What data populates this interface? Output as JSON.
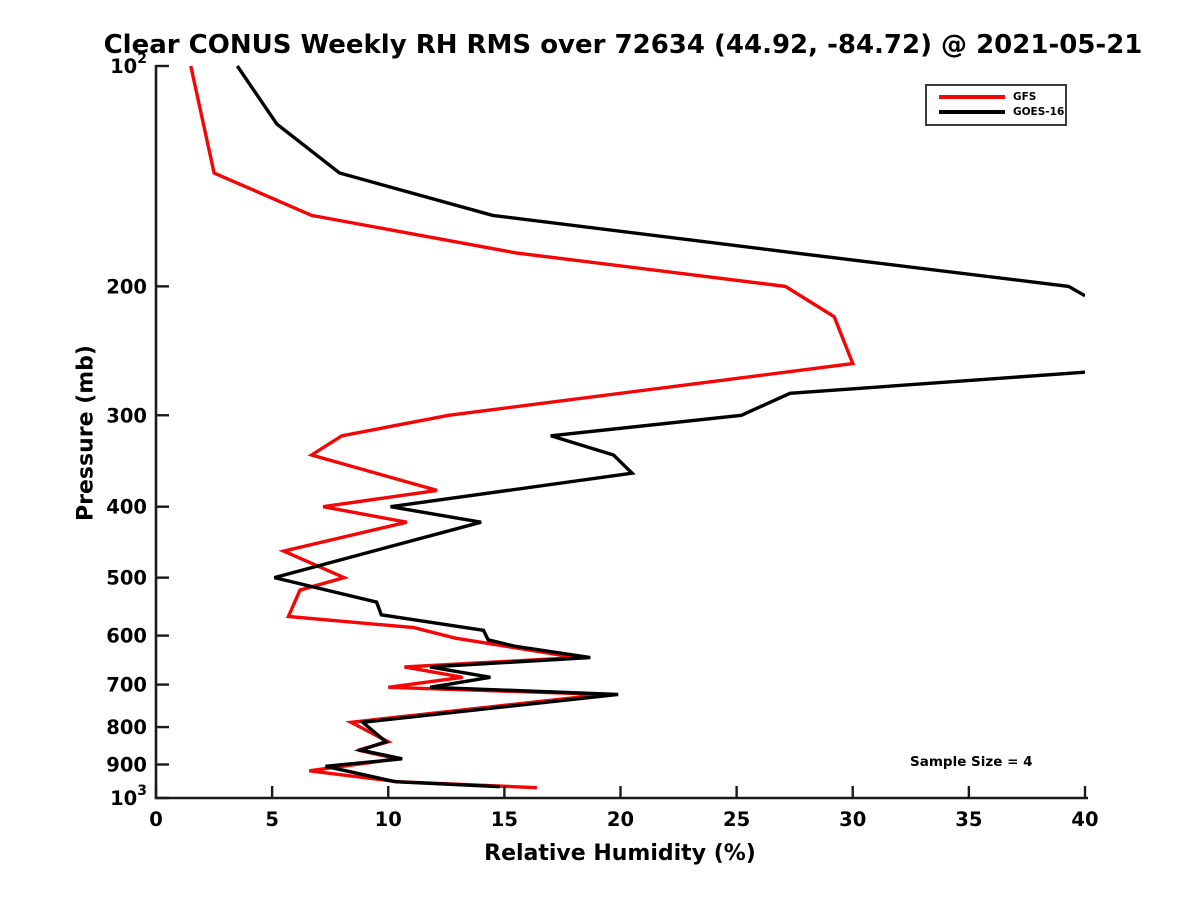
{
  "page": {
    "background": "#ffffff",
    "text_color": "#000000"
  },
  "chart_data": {
    "type": "line",
    "title": "Clear CONUS Weekly RH RMS over 72634 (44.92, -84.72) @ 2021-05-21",
    "xlabel": "Relative Humidity (%)",
    "ylabel": "Pressure (mb)",
    "x_axis": {
      "min": 0,
      "max": 40,
      "ticks": [
        0,
        5,
        10,
        15,
        20,
        25,
        30,
        35,
        40
      ],
      "scale": "linear"
    },
    "y_axis": {
      "min_mb": 100,
      "max_mb": 1000,
      "scale": "log",
      "direction": "pressure increases downward",
      "ticks": [
        {
          "p": 100,
          "text": "10",
          "sup": "2"
        },
        {
          "p": 200,
          "text": "200"
        },
        {
          "p": 300,
          "text": "300"
        },
        {
          "p": 400,
          "text": "400"
        },
        {
          "p": 500,
          "text": "500"
        },
        {
          "p": 600,
          "text": "600"
        },
        {
          "p": 700,
          "text": "700"
        },
        {
          "p": 800,
          "text": "800"
        },
        {
          "p": 900,
          "text": "900"
        },
        {
          "p": 1000,
          "text": "10",
          "sup": "3"
        }
      ]
    },
    "grid": false,
    "axis_color": "#1a1a1a",
    "legend": {
      "position": "top-right",
      "border_color": "#3b3b3b",
      "entries": [
        {
          "label": "GFS",
          "color": "#f40606"
        },
        {
          "label": "GOES-16",
          "color": "#000000"
        }
      ]
    },
    "annotation": {
      "text": "Sample Size = 4"
    },
    "series": [
      {
        "name": "GFS",
        "color": "#f40606",
        "line_width": 3.4,
        "segments_p_rh": [
          [
            [
              100,
              1.5
            ],
            [
              140,
              2.5
            ],
            [
              160,
              6.7
            ],
            [
              180,
              15.5
            ],
            [
              200,
              27.1
            ],
            [
              220,
              29.2
            ],
            [
              255,
              30.0
            ],
            [
              300,
              12.6
            ],
            [
              320,
              8.0
            ],
            [
              340,
              6.7
            ],
            [
              380,
              12.1
            ],
            [
              400,
              7.2
            ],
            [
              420,
              10.8
            ],
            [
              460,
              5.5
            ],
            [
              500,
              8.1
            ],
            [
              520,
              6.2
            ],
            [
              565,
              5.7
            ],
            [
              585,
              11.1
            ],
            [
              605,
              12.9
            ],
            [
              643,
              18.1
            ],
            [
              662,
              10.7
            ],
            [
              684,
              13.2
            ],
            [
              706,
              10.0
            ],
            [
              722,
              19.3
            ],
            [
              788,
              8.4
            ],
            [
              838,
              10.0
            ],
            [
              860,
              8.7
            ],
            [
              884,
              10.4
            ],
            [
              918,
              6.6
            ],
            [
              950,
              10.4
            ],
            [
              968,
              16.4
            ]
          ]
        ]
      },
      {
        "name": "GOES-16",
        "color": "#000000",
        "line_width": 3.4,
        "clipped_above_xmax_between_mb": [
          206,
          262
        ],
        "segments_p_rh": [
          [
            [
              100,
              3.5
            ],
            [
              120,
              5.2
            ],
            [
              140,
              7.9
            ],
            [
              160,
              14.5
            ],
            [
              180,
              27.5
            ],
            [
              200,
              39.3
            ],
            [
              206,
              40.0
            ]
          ],
          [
            [
              262,
              40.0
            ],
            [
              280,
              27.3
            ],
            [
              300,
              25.2
            ],
            [
              320,
              17.0
            ],
            [
              340,
              19.7
            ],
            [
              360,
              20.5
            ],
            [
              400,
              10.1
            ],
            [
              420,
              14.0
            ],
            [
              500,
              5.1
            ],
            [
              540,
              9.5
            ],
            [
              562,
              9.7
            ],
            [
              590,
              14.1
            ],
            [
              608,
              14.3
            ],
            [
              620,
              15.4
            ],
            [
              643,
              18.7
            ],
            [
              662,
              11.8
            ],
            [
              684,
              14.4
            ],
            [
              706,
              11.8
            ],
            [
              722,
              19.9
            ],
            [
              788,
              8.9
            ],
            [
              838,
              9.9
            ],
            [
              860,
              8.8
            ],
            [
              884,
              10.6
            ],
            [
              905,
              7.3
            ],
            [
              950,
              10.3
            ],
            [
              965,
              14.8
            ]
          ]
        ]
      }
    ]
  }
}
